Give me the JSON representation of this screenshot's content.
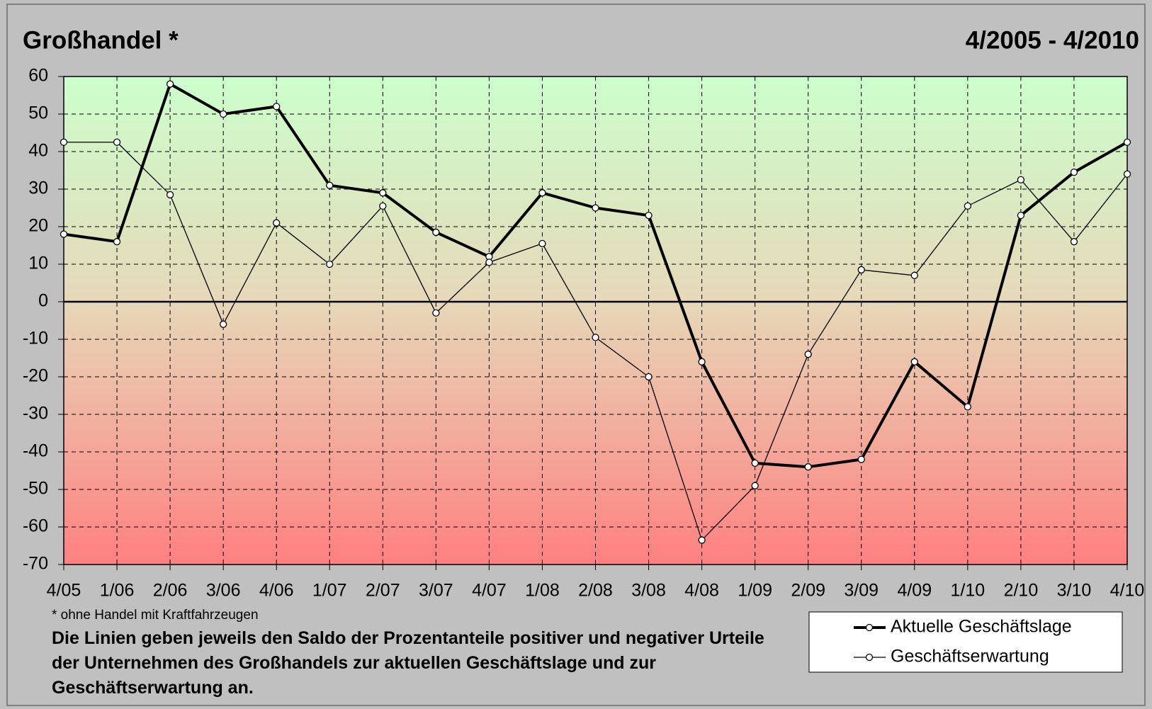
{
  "chart_data": {
    "type": "line",
    "title": "Großhandel *",
    "period": "4/2005 - 4/2010",
    "footnote": "* ohne Handel mit Kraftfahrzeugen",
    "description": "Die Linien geben jeweils den Saldo der Prozentanteile positiver und negativer Urteile der Unternehmen des Großhandels zur aktuellen Geschäftslage und zur Geschäftserwartung an.",
    "categories": [
      "4/05",
      "1/06",
      "2/06",
      "3/06",
      "4/06",
      "1/07",
      "2/07",
      "3/07",
      "4/07",
      "1/08",
      "2/08",
      "3/08",
      "4/08",
      "1/09",
      "2/09",
      "3/09",
      "4/09",
      "1/10",
      "2/10",
      "3/10",
      "4/10"
    ],
    "series": [
      {
        "name": "Aktuelle Geschäftslage",
        "color": "#000000",
        "width": 4,
        "values": [
          18,
          16,
          58,
          50,
          52,
          31,
          29,
          18.5,
          12,
          29,
          25,
          23,
          -16,
          -43,
          -44,
          -42,
          -16,
          -28,
          23,
          34.5,
          42.5
        ]
      },
      {
        "name": "Geschäftserwartung",
        "color": "#000000",
        "width": 1.3,
        "values": [
          42.5,
          42.5,
          28.5,
          -6,
          21,
          10,
          25.5,
          -3,
          10.5,
          15.5,
          -9.5,
          -20,
          -63.5,
          -49,
          -14,
          8.5,
          7,
          25.5,
          32.5,
          16,
          34
        ]
      }
    ],
    "ylim": [
      -70,
      60
    ],
    "yticks": [
      -70,
      -60,
      -50,
      -40,
      -30,
      -20,
      -10,
      0,
      10,
      20,
      30,
      40,
      50,
      60
    ],
    "grid": true
  }
}
